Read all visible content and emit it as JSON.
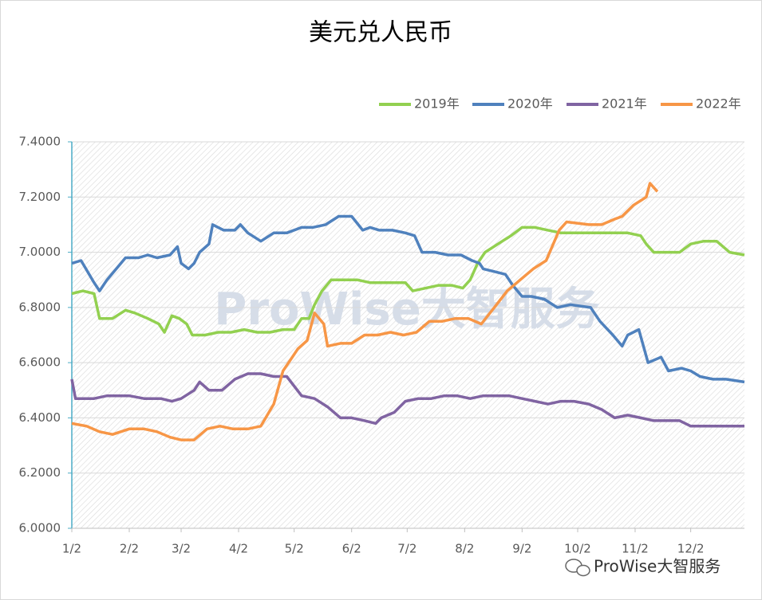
{
  "chart_data": {
    "type": "line",
    "title": "美元兑人民币",
    "watermark": "ProWise大智服务",
    "footer": "ProWise大智服务",
    "xlim": [
      "1/2",
      "12/31"
    ],
    "xticks": [
      "1/2",
      "2/2",
      "3/2",
      "4/2",
      "5/2",
      "6/2",
      "7/2",
      "8/2",
      "9/2",
      "10/2",
      "11/2",
      "12/2"
    ],
    "ylim": [
      6.0,
      7.4
    ],
    "yticks": [
      {
        "value": 6.0,
        "label": "6.0000"
      },
      {
        "value": 6.2,
        "label": "6.2000"
      },
      {
        "value": 6.4,
        "label": "6.4000"
      },
      {
        "value": 6.6,
        "label": "6.6000"
      },
      {
        "value": 6.8,
        "label": "6.8000"
      },
      {
        "value": 7.0,
        "label": "7.0000"
      },
      {
        "value": 7.2,
        "label": "7.2000"
      },
      {
        "value": 7.4,
        "label": "7.4000"
      }
    ],
    "grid": true,
    "legend": "top-right",
    "series": [
      {
        "name": "2019年",
        "color": "#92d050",
        "x": [
          "1/2",
          "1/8",
          "1/14",
          "1/17",
          "1/24",
          "1/31",
          "2/5",
          "2/12",
          "2/18",
          "2/21",
          "2/25",
          "3/1",
          "3/5",
          "3/8",
          "3/15",
          "3/22",
          "3/29",
          "4/5",
          "4/12",
          "4/19",
          "4/26",
          "5/2",
          "5/6",
          "5/10",
          "5/13",
          "5/17",
          "5/22",
          "5/29",
          "6/5",
          "6/12",
          "6/19",
          "6/26",
          "7/1",
          "7/5",
          "7/12",
          "7/19",
          "7/26",
          "8/1",
          "8/5",
          "8/9",
          "8/13",
          "8/20",
          "8/27",
          "9/2",
          "9/9",
          "9/16",
          "9/23",
          "9/30",
          "10/8",
          "10/15",
          "10/22",
          "10/29",
          "11/5",
          "11/8",
          "11/12",
          "11/19",
          "11/26",
          "12/2",
          "12/9",
          "12/16",
          "12/23",
          "12/31"
        ],
        "values": [
          6.85,
          6.86,
          6.85,
          6.76,
          6.76,
          6.79,
          6.78,
          6.76,
          6.74,
          6.71,
          6.77,
          6.76,
          6.74,
          6.7,
          6.7,
          6.71,
          6.71,
          6.72,
          6.71,
          6.71,
          6.72,
          6.72,
          6.76,
          6.76,
          6.81,
          6.86,
          6.9,
          6.9,
          6.9,
          6.89,
          6.89,
          6.89,
          6.89,
          6.86,
          6.87,
          6.88,
          6.88,
          6.87,
          6.9,
          6.96,
          7.0,
          7.03,
          7.06,
          7.09,
          7.09,
          7.08,
          7.07,
          7.07,
          7.07,
          7.07,
          7.07,
          7.07,
          7.06,
          7.03,
          7.0,
          7.0,
          7.0,
          7.03,
          7.04,
          7.04,
          7.0,
          6.99
        ]
      },
      {
        "name": "2020年",
        "color": "#4f81bd",
        "x": [
          "1/2",
          "1/7",
          "1/14",
          "1/17",
          "1/21",
          "1/31",
          "2/7",
          "2/12",
          "2/17",
          "2/24",
          "2/28",
          "3/2",
          "3/6",
          "3/9",
          "3/12",
          "3/17",
          "3/19",
          "3/25",
          "3/31",
          "4/3",
          "4/7",
          "4/14",
          "4/21",
          "4/28",
          "5/6",
          "5/12",
          "5/19",
          "5/26",
          "6/2",
          "6/8",
          "6/12",
          "6/17",
          "6/24",
          "7/1",
          "7/6",
          "7/10",
          "7/17",
          "7/24",
          "7/31",
          "8/6",
          "8/10",
          "8/12",
          "8/18",
          "8/24",
          "8/28",
          "9/2",
          "9/7",
          "9/14",
          "9/21",
          "9/28",
          "10/9",
          "10/14",
          "10/21",
          "10/26",
          "10/29",
          "11/4",
          "11/9",
          "11/16",
          "11/20",
          "11/27",
          "12/2",
          "12/7",
          "12/14",
          "12/21",
          "12/31"
        ],
        "values": [
          6.96,
          6.97,
          6.89,
          6.86,
          6.9,
          6.98,
          6.98,
          6.99,
          6.98,
          6.99,
          7.02,
          6.96,
          6.94,
          6.96,
          7.0,
          7.03,
          7.1,
          7.08,
          7.08,
          7.1,
          7.07,
          7.04,
          7.07,
          7.07,
          7.09,
          7.09,
          7.1,
          7.13,
          7.13,
          7.08,
          7.09,
          7.08,
          7.08,
          7.07,
          7.06,
          7.0,
          7.0,
          6.99,
          6.99,
          6.97,
          6.96,
          6.94,
          6.93,
          6.92,
          6.88,
          6.84,
          6.84,
          6.83,
          6.8,
          6.81,
          6.8,
          6.75,
          6.7,
          6.66,
          6.7,
          6.72,
          6.6,
          6.62,
          6.57,
          6.58,
          6.57,
          6.55,
          6.54,
          6.54,
          6.53
        ]
      },
      {
        "name": "2021年",
        "color": "#8064a2",
        "x": [
          "1/2",
          "1/4",
          "1/14",
          "1/21",
          "2/2",
          "2/10",
          "2/19",
          "2/25",
          "3/2",
          "3/9",
          "3/12",
          "3/17",
          "3/24",
          "3/31",
          "4/7",
          "4/14",
          "4/21",
          "4/28",
          "5/6",
          "5/13",
          "5/20",
          "5/27",
          "6/2",
          "6/9",
          "6/15",
          "6/18",
          "6/25",
          "7/1",
          "7/8",
          "7/15",
          "7/22",
          "7/29",
          "8/5",
          "8/12",
          "8/19",
          "8/26",
          "9/2",
          "9/9",
          "9/16",
          "9/23",
          "9/30",
          "10/8",
          "10/15",
          "10/22",
          "10/29",
          "11/5",
          "11/12",
          "11/19",
          "11/26",
          "12/2",
          "12/9",
          "12/16",
          "12/23",
          "12/31"
        ],
        "values": [
          6.54,
          6.47,
          6.47,
          6.48,
          6.48,
          6.47,
          6.47,
          6.46,
          6.47,
          6.5,
          6.53,
          6.5,
          6.5,
          6.54,
          6.56,
          6.56,
          6.55,
          6.55,
          6.48,
          6.47,
          6.44,
          6.4,
          6.4,
          6.39,
          6.38,
          6.4,
          6.42,
          6.46,
          6.47,
          6.47,
          6.48,
          6.48,
          6.47,
          6.48,
          6.48,
          6.48,
          6.47,
          6.46,
          6.45,
          6.46,
          6.46,
          6.45,
          6.43,
          6.4,
          6.41,
          6.4,
          6.39,
          6.39,
          6.39,
          6.37,
          6.37,
          6.37,
          6.37,
          6.37
        ]
      },
      {
        "name": "2022年",
        "color": "#f79646",
        "x": [
          "1/2",
          "1/10",
          "1/17",
          "1/24",
          "2/2",
          "2/10",
          "2/17",
          "2/24",
          "3/2",
          "3/9",
          "3/16",
          "3/23",
          "3/30",
          "4/7",
          "4/14",
          "4/21",
          "4/26",
          "4/29",
          "5/4",
          "5/9",
          "5/13",
          "5/18",
          "5/20",
          "5/27",
          "6/2",
          "6/9",
          "6/16",
          "6/23",
          "6/30",
          "7/7",
          "7/14",
          "7/21",
          "7/28",
          "8/4",
          "8/11",
          "8/18",
          "8/25",
          "9/1",
          "9/8",
          "9/15",
          "9/22",
          "9/26",
          "10/8",
          "10/15",
          "10/22",
          "10/26",
          "11/1",
          "11/8",
          "11/10",
          "11/14"
        ],
        "values": [
          6.38,
          6.37,
          6.35,
          6.34,
          6.36,
          6.36,
          6.35,
          6.33,
          6.32,
          6.32,
          6.36,
          6.37,
          6.36,
          6.36,
          6.37,
          6.45,
          6.57,
          6.6,
          6.65,
          6.68,
          6.78,
          6.74,
          6.66,
          6.67,
          6.67,
          6.7,
          6.7,
          6.71,
          6.7,
          6.71,
          6.75,
          6.75,
          6.76,
          6.76,
          6.74,
          6.8,
          6.86,
          6.9,
          6.94,
          6.97,
          7.08,
          7.11,
          7.1,
          7.1,
          7.12,
          7.13,
          7.17,
          7.2,
          7.25,
          7.22
        ]
      }
    ]
  }
}
